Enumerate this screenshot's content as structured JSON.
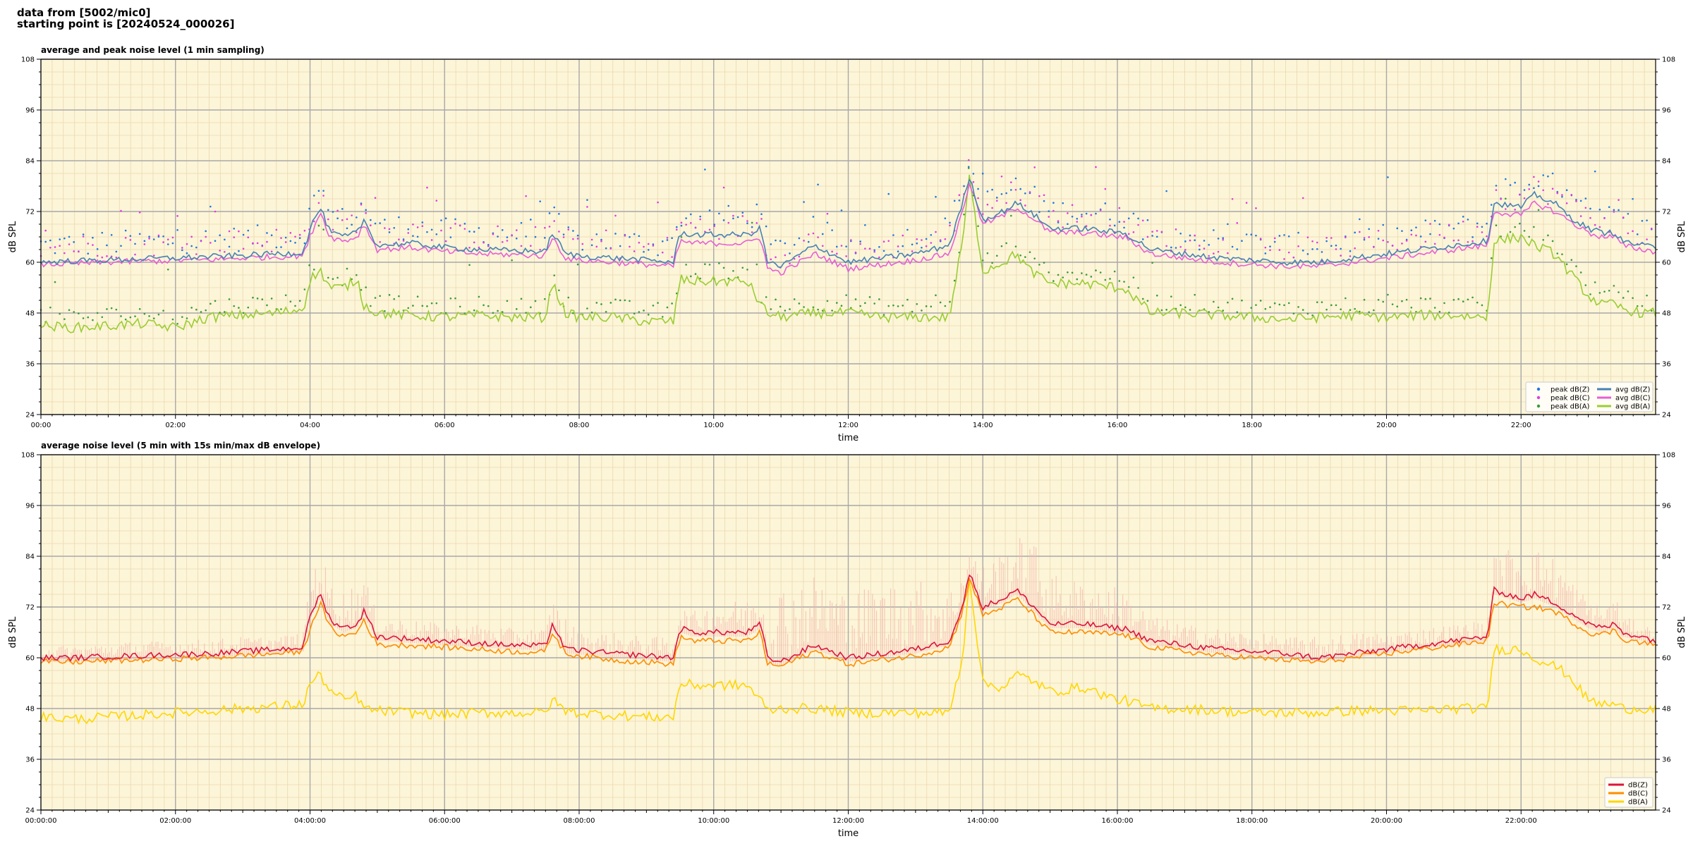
{
  "header": {
    "line1": "data from [5002/mic0]",
    "line2": "starting point is [20240524_000026]"
  },
  "colors": {
    "plot_bg": "#fdf5d8",
    "peak_z": "#1f77e0",
    "peak_c": "#e03ce0",
    "peak_a": "#3a9a3a",
    "avg_z": "#4682b4",
    "avg_c": "#e75fd6",
    "avg_a": "#9acd32",
    "dbz": "#dc143c",
    "dbc": "#ff8c00",
    "dba": "#ffd700",
    "envelope": "#f4b8b0"
  },
  "chart_data": [
    {
      "type": "line",
      "title": "average and peak noise level (1 min sampling)",
      "xlabel": "time",
      "ylabel": "dB SPL",
      "ylabel_right": "dB SPL",
      "xlim": [
        0,
        24
      ],
      "ylim": [
        24,
        108
      ],
      "yticks": [
        24,
        36,
        48,
        60,
        72,
        84,
        96,
        108
      ],
      "xtick_labels": [
        "00:00",
        "02:00",
        "04:00",
        "06:00",
        "08:00",
        "10:00",
        "12:00",
        "14:00",
        "16:00",
        "18:00",
        "20:00",
        "22:00"
      ],
      "grid": true,
      "legend_position": "bottom-right",
      "legend": [
        {
          "label": "peak dB(Z)",
          "kind": "dot",
          "color": "#1f77e0"
        },
        {
          "label": "avg dB(Z)",
          "kind": "line",
          "color": "#4682b4"
        },
        {
          "label": "peak dB(C)",
          "kind": "dot",
          "color": "#e03ce0"
        },
        {
          "label": "avg dB(C)",
          "kind": "line",
          "color": "#e75fd6"
        },
        {
          "label": "peak dB(A)",
          "kind": "dot",
          "color": "#3a9a3a"
        },
        {
          "label": "avg dB(A)",
          "kind": "line",
          "color": "#9acd32"
        }
      ],
      "x": [
        0,
        0.5,
        1,
        1.5,
        2,
        2.5,
        3,
        3.5,
        3.9,
        4,
        4.15,
        4.3,
        4.5,
        4.7,
        4.8,
        5,
        5.5,
        6,
        6.5,
        7,
        7.5,
        7.6,
        7.8,
        8,
        8.5,
        9,
        9.4,
        9.5,
        9.7,
        10,
        10.5,
        10.7,
        10.8,
        11,
        11.5,
        12,
        12.5,
        13,
        13.5,
        13.7,
        13.8,
        14,
        14.3,
        14.5,
        14.7,
        15,
        15.5,
        16,
        16.1,
        16.5,
        17,
        17.5,
        18,
        18.5,
        19,
        19.5,
        20,
        20.5,
        21,
        21.5,
        21.6,
        22,
        22.2,
        22.5,
        22.7,
        23,
        23.2,
        23.4,
        23.5,
        23.8,
        24
      ],
      "series": [
        {
          "name": "avg dB(Z)",
          "values": [
            60,
            60.3,
            60.5,
            60.8,
            61,
            61.3,
            61.6,
            62,
            62.3,
            68,
            73,
            67,
            66,
            67,
            70,
            64,
            64.5,
            63.5,
            63,
            62.8,
            62.5,
            67,
            62,
            61.5,
            61,
            60.5,
            60,
            67,
            66.5,
            66.5,
            66.5,
            68,
            60,
            59,
            64,
            60,
            61,
            62,
            64,
            74,
            80,
            70,
            72,
            74,
            72,
            68,
            68,
            67,
            67,
            63,
            62,
            61,
            60.5,
            60,
            60,
            61,
            62,
            63,
            64,
            65,
            74,
            73,
            76,
            74,
            71,
            68,
            67,
            67,
            65,
            64,
            63.5
          ]
        },
        {
          "name": "avg dB(C)",
          "values": [
            59.5,
            59.7,
            60,
            60.2,
            60.4,
            60.6,
            61,
            61.3,
            61.6,
            66,
            72,
            66,
            65,
            66,
            69,
            63,
            63.5,
            62.5,
            62,
            61.8,
            61.5,
            66,
            61,
            60.5,
            60,
            59.5,
            59,
            65,
            64.5,
            64.5,
            64.5,
            66,
            58.5,
            57.5,
            62,
            58.5,
            59.5,
            60.5,
            62,
            72,
            79,
            69,
            71,
            73,
            71,
            67,
            67,
            66,
            66,
            62,
            61,
            60,
            59.5,
            59,
            59,
            60,
            61,
            62,
            63,
            64,
            72,
            71,
            74,
            72,
            70,
            67,
            66,
            66,
            64,
            63,
            62.5
          ]
        },
        {
          "name": "avg dB(A)",
          "values": [
            45,
            44.5,
            45,
            45.5,
            44.5,
            47,
            47.5,
            48,
            49,
            56,
            58,
            54,
            54,
            56,
            50,
            48,
            47.5,
            47,
            47.5,
            47,
            47,
            55,
            48,
            47,
            47,
            46,
            46,
            56,
            55.5,
            55.5,
            55.5,
            50,
            48,
            47,
            48,
            48,
            47,
            47,
            47,
            65,
            80,
            58,
            60,
            62,
            58,
            55,
            55,
            54,
            54,
            48,
            48,
            47.5,
            47,
            46.5,
            47,
            47.5,
            47,
            47.5,
            47.5,
            47,
            65,
            66,
            64,
            62,
            58,
            52,
            50,
            50,
            49,
            48,
            48
          ]
        }
      ]
    },
    {
      "type": "line",
      "title": "average noise level (5 min with 15s min/max dB envelope)",
      "xlabel": "time",
      "ylabel": "dB SPL",
      "ylabel_right": "dB SPL",
      "xlim": [
        0,
        24
      ],
      "ylim": [
        24,
        108
      ],
      "yticks": [
        24,
        36,
        48,
        60,
        72,
        84,
        96,
        108
      ],
      "xtick_labels": [
        "00:00:00",
        "02:00:00",
        "04:00:00",
        "06:00:00",
        "08:00:00",
        "10:00:00",
        "12:00:00",
        "14:00:00",
        "16:00:00",
        "18:00:00",
        "20:00:00",
        "22:00:00"
      ],
      "grid": true,
      "legend_position": "bottom-right",
      "legend": [
        {
          "label": "dB(Z)",
          "kind": "line",
          "color": "#dc143c"
        },
        {
          "label": "dB(C)",
          "kind": "line",
          "color": "#ff8c00"
        },
        {
          "label": "dB(A)",
          "kind": "line",
          "color": "#ffd700"
        }
      ],
      "x": [
        0,
        0.5,
        1,
        1.5,
        2,
        2.5,
        3,
        3.5,
        3.9,
        4,
        4.15,
        4.3,
        4.5,
        4.7,
        4.8,
        5,
        5.5,
        6,
        6.5,
        7,
        7.5,
        7.6,
        7.8,
        8,
        8.5,
        9,
        9.4,
        9.5,
        9.7,
        10,
        10.5,
        10.7,
        10.8,
        11,
        11.5,
        12,
        12.5,
        13,
        13.5,
        13.7,
        13.8,
        14,
        14.3,
        14.5,
        14.7,
        15,
        15.5,
        16,
        16.1,
        16.5,
        17,
        17.5,
        18,
        18.5,
        19,
        19.5,
        20,
        20.5,
        21,
        21.5,
        21.6,
        22,
        22.2,
        22.5,
        22.7,
        23,
        23.2,
        23.4,
        23.5,
        23.8,
        24
      ],
      "envelope_max": [
        63,
        63,
        63.5,
        64,
        64,
        64.5,
        65,
        65,
        66,
        80,
        86,
        78,
        76,
        78,
        80,
        70,
        69,
        68,
        68,
        67,
        67,
        74,
        70,
        66,
        66,
        65,
        65,
        72,
        71,
        73,
        74,
        78,
        70,
        78,
        80,
        76,
        78,
        79,
        76,
        82,
        86,
        82,
        86,
        88,
        90,
        80,
        78,
        77,
        76,
        70,
        68,
        67,
        66,
        65,
        65,
        66,
        66,
        67,
        68,
        69,
        84,
        88,
        86,
        84,
        80,
        74,
        72,
        75,
        70,
        68,
        67
      ],
      "series": [
        {
          "name": "dB(Z)",
          "values": [
            60,
            60,
            60.3,
            60.5,
            60.8,
            61,
            61.5,
            62,
            62.5,
            70,
            75,
            69,
            67,
            68,
            71,
            65,
            64.5,
            64,
            63.5,
            63,
            62.8,
            68,
            62,
            61.8,
            61,
            60.5,
            60,
            67,
            66,
            66,
            66,
            68,
            60,
            59,
            63,
            60,
            61,
            62,
            64,
            72,
            80,
            72,
            74,
            76,
            73,
            68,
            68,
            67,
            67,
            64,
            63,
            62,
            61.5,
            61,
            60,
            61,
            62,
            63,
            64,
            65,
            76,
            74,
            75,
            73,
            71,
            68,
            67,
            68,
            66,
            65,
            64
          ]
        },
        {
          "name": "dB(C)",
          "values": [
            59,
            59,
            59.3,
            59.5,
            59.8,
            60,
            60.5,
            61,
            61.5,
            67,
            73,
            67,
            65,
            66,
            69,
            63,
            63,
            62.5,
            62,
            61.5,
            61.3,
            66,
            61,
            60.5,
            59.5,
            59,
            58.5,
            65,
            64,
            64,
            64,
            66,
            58.5,
            58,
            61.5,
            58.5,
            59.5,
            60.5,
            62.5,
            71,
            79,
            70,
            72,
            74,
            71,
            66,
            66,
            65.5,
            65.5,
            62.5,
            61.5,
            60.5,
            60,
            59.5,
            59,
            60,
            61,
            62,
            63,
            64,
            73,
            72,
            72,
            71,
            69,
            66,
            65.5,
            66.5,
            64.5,
            63.5,
            63
          ]
        },
        {
          "name": "dB(A)",
          "values": [
            46,
            45.5,
            46,
            46.5,
            47,
            47.5,
            48,
            48.5,
            49,
            54,
            56,
            52,
            50,
            51,
            48,
            47.5,
            47,
            46.5,
            47,
            47,
            47,
            50,
            47.5,
            47,
            46.5,
            46,
            46,
            54,
            53.5,
            53.5,
            53.5,
            50,
            47.5,
            48,
            48,
            47,
            47,
            47,
            47,
            60,
            79,
            54,
            53,
            56,
            55,
            52,
            53,
            50,
            50,
            48,
            48,
            47.5,
            47,
            47,
            47,
            47.5,
            47.5,
            47.5,
            48,
            48,
            62,
            62,
            60,
            58,
            56,
            50,
            49,
            49,
            48,
            48,
            48
          ]
        }
      ]
    }
  ]
}
